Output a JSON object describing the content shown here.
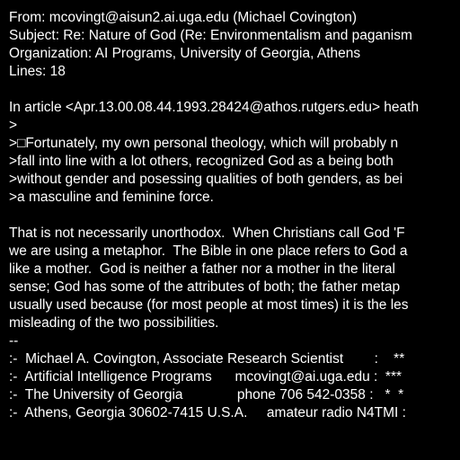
{
  "colors": {
    "background": "#000000",
    "text": "#ffffff"
  },
  "header": {
    "from": "From: mcovingt@aisun2.ai.uga.edu (Michael Covington)",
    "subject": "Subject: Re: Nature of God (Re: Environmentalism and paganism",
    "organization": "Organization: AI Programs, University of Georgia, Athens",
    "lines": "Lines: 18"
  },
  "quote": {
    "attribution": "In article <Apr.13.00.08.44.1993.28424@athos.rutgers.edu> heath",
    "lines": [
      ">",
      ">□Fortunately, my own personal theology, which will probably n",
      ">fall into line with a lot others, recognized God as a being both",
      ">without gender and posessing qualities of both genders, as bei",
      ">a masculine and feminine force."
    ]
  },
  "body": {
    "lines": [
      "That is not necessarily unorthodox.  When Christians call God 'F",
      "we are using a metaphor.  The Bible in one place refers to God a",
      "like a mother.  God is neither a father nor a mother in the literal",
      "sense; God has some of the attributes of both; the father metap",
      "usually used because (for most people at most times) it is the les",
      "misleading of the two possibilities."
    ]
  },
  "signature": {
    "separator": "--",
    "lines": [
      ":-  Michael A. Covington, Associate Research Scientist        :    **",
      ":-  Artificial Intelligence Programs      mcovingt@ai.uga.edu :  ***",
      ":-  The University of Georgia              phone 706 542-0358 :   *  *",
      ":-  Athens, Georgia 30602-7415 U.S.A.     amateur radio N4TMI :"
    ]
  }
}
